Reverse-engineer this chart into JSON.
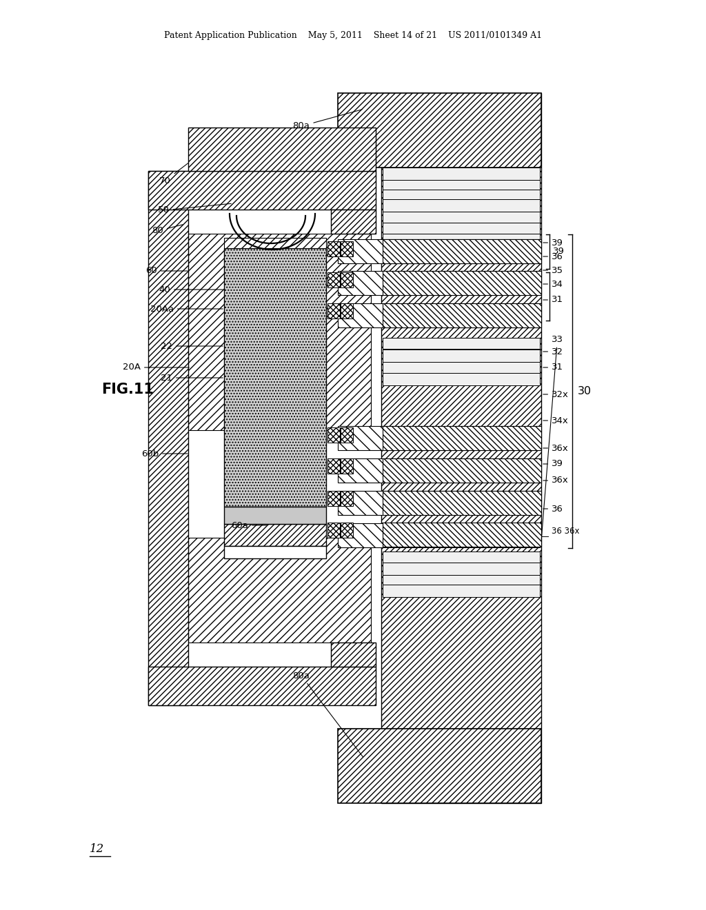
{
  "page_header": "Patent Application Publication    May 5, 2011    Sheet 14 of 21    US 2011/0101349 A1",
  "fig_label": "FIG.11",
  "bottom_ref": "12",
  "bg": "#ffffff"
}
